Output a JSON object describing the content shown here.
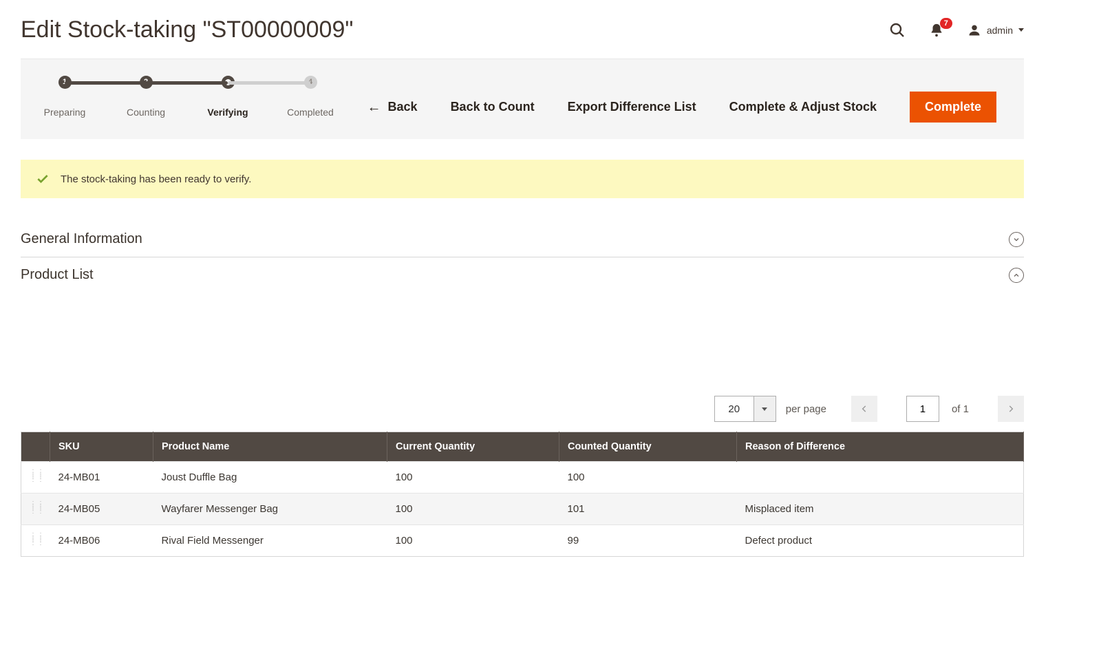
{
  "header": {
    "page_title": "Edit Stock-taking \"ST00000009\"",
    "notification_count": "7",
    "user_name": "admin"
  },
  "stepper": {
    "steps": [
      {
        "label": "Preparing",
        "num": "1",
        "state": "done"
      },
      {
        "label": "Counting",
        "num": "2",
        "state": "done"
      },
      {
        "label": "Verifying",
        "num": "",
        "state": "current"
      },
      {
        "label": "Completed",
        "num": "4",
        "state": "future"
      }
    ]
  },
  "actions": {
    "back": "Back",
    "back_to_count": "Back to Count",
    "export_diff": "Export Difference List",
    "complete_adjust": "Complete & Adjust Stock",
    "complete": "Complete"
  },
  "message": {
    "text": "The stock-taking has been ready to verify."
  },
  "sections": {
    "general_info": "General Information",
    "product_list": "Product List"
  },
  "pager": {
    "per_page_value": "20",
    "per_page_label": "per page",
    "page_value": "1",
    "of_label": "of 1"
  },
  "table": {
    "columns": [
      "SKU",
      "Product Name",
      "Current Quantity",
      "Counted Quantity",
      "Reason of Difference"
    ],
    "rows": [
      {
        "sku": "24-MB01",
        "name": "Joust Duffle Bag",
        "current": "100",
        "counted": "100",
        "reason": ""
      },
      {
        "sku": "24-MB05",
        "name": "Wayfarer Messenger Bag",
        "current": "100",
        "counted": "101",
        "reason": "Misplaced item"
      },
      {
        "sku": "24-MB06",
        "name": "Rival Field Messenger",
        "current": "100",
        "counted": "99",
        "reason": "Defect product"
      }
    ]
  },
  "colors": {
    "accent": "#eb5202",
    "bar_bg": "#f5f5f5",
    "dark": "#514943",
    "msg_bg": "#fdf9c0",
    "success": "#79a22e",
    "badge": "#e22626"
  }
}
